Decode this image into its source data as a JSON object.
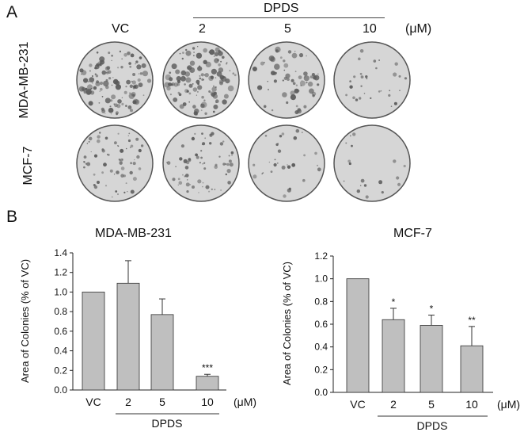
{
  "panels": {
    "a": "A",
    "b": "B"
  },
  "photo_panel": {
    "group_label": "DPDS",
    "column_labels": [
      "VC",
      "2",
      "5",
      "10"
    ],
    "unit": "(μM)",
    "row_labels": [
      "MDA-MB-231",
      "MCF-7"
    ],
    "dishes": [
      {
        "row": "MDA-MB-231",
        "column": "VC",
        "density": "high"
      },
      {
        "row": "MDA-MB-231",
        "column": "2",
        "density": "high"
      },
      {
        "row": "MDA-MB-231",
        "column": "5",
        "density": "medium"
      },
      {
        "row": "MDA-MB-231",
        "column": "10",
        "density": "low"
      },
      {
        "row": "MCF-7",
        "column": "VC",
        "density": "medium"
      },
      {
        "row": "MCF-7",
        "column": "2",
        "density": "medium"
      },
      {
        "row": "MCF-7",
        "column": "5",
        "density": "low"
      },
      {
        "row": "MCF-7",
        "column": "10",
        "density": "very-low"
      }
    ]
  },
  "colors": {
    "bar_fill": "#bfbfbf",
    "bar_stroke": "#333333",
    "dish_bg": "#d6d6d6",
    "colony": "#5a5a5a"
  },
  "chart_data": [
    {
      "type": "bar",
      "title": "MDA-MB-231",
      "ylabel": "Area of Colonies (% of VC)",
      "xlabel": "DPDS",
      "x_unit": "(μM)",
      "categories": [
        "VC",
        "2",
        "5",
        "10"
      ],
      "values": [
        1.0,
        1.09,
        0.77,
        0.14
      ],
      "error_plus": [
        0,
        0.23,
        0.16,
        0.02
      ],
      "significance": [
        "",
        "",
        "",
        "***"
      ],
      "ylim": [
        0,
        1.4
      ],
      "yticks": [
        "0.0",
        "0.2",
        "0.4",
        "0.6",
        "0.8",
        "1.0",
        "1.2",
        "1.4"
      ],
      "grid": false
    },
    {
      "type": "bar",
      "title": "MCF-7",
      "ylabel": "Area of Colonies (% of VC)",
      "xlabel": "DPDS",
      "x_unit": "(μM)",
      "categories": [
        "VC",
        "2",
        "5",
        "10"
      ],
      "values": [
        1.0,
        0.64,
        0.59,
        0.41
      ],
      "error_plus": [
        0,
        0.1,
        0.09,
        0.17
      ],
      "significance": [
        "",
        "*",
        "*",
        "**"
      ],
      "ylim": [
        0,
        1.2
      ],
      "yticks": [
        "0.0",
        "0.2",
        "0.4",
        "0.6",
        "0.8",
        "1.0",
        "1.2"
      ],
      "grid": false
    }
  ]
}
